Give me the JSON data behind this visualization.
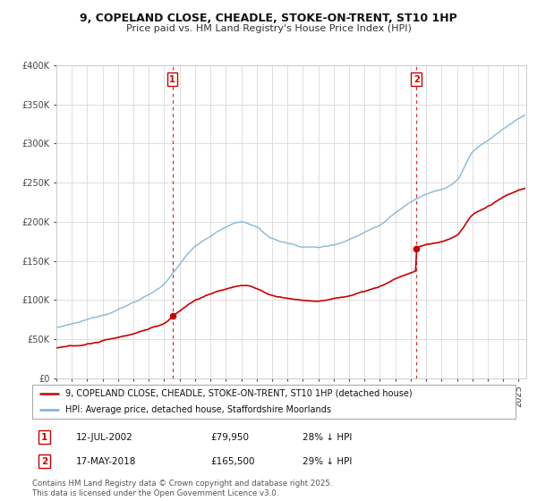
{
  "title_line1": "9, COPELAND CLOSE, CHEADLE, STOKE-ON-TRENT, ST10 1HP",
  "title_line2": "Price paid vs. HM Land Registry's House Price Index (HPI)",
  "legend_line1": "9, COPELAND CLOSE, CHEADLE, STOKE-ON-TRENT, ST10 1HP (detached house)",
  "legend_line2": "HPI: Average price, detached house, Staffordshire Moorlands",
  "annotation1_date": "12-JUL-2002",
  "annotation1_price": "£79,950",
  "annotation1_hpi": "28% ↓ HPI",
  "annotation2_date": "17-MAY-2018",
  "annotation2_price": "£165,500",
  "annotation2_hpi": "29% ↓ HPI",
  "footer": "Contains HM Land Registry data © Crown copyright and database right 2025.\nThis data is licensed under the Open Government Licence v3.0.",
  "property_color": "#cc0000",
  "hpi_color": "#7bafd4",
  "vline_color": "#cc0000",
  "annotation_box_color": "#cc0000",
  "background_color": "#ffffff",
  "grid_color": "#d8d8d8",
  "purchase1_year": 2002.53,
  "purchase1_price": 79950,
  "purchase2_year": 2018.37,
  "purchase2_price": 165500,
  "xlim": [
    1995,
    2025.5
  ],
  "ylim": [
    0,
    400000
  ],
  "yticks": [
    0,
    50000,
    100000,
    150000,
    200000,
    250000,
    300000,
    350000,
    400000
  ]
}
